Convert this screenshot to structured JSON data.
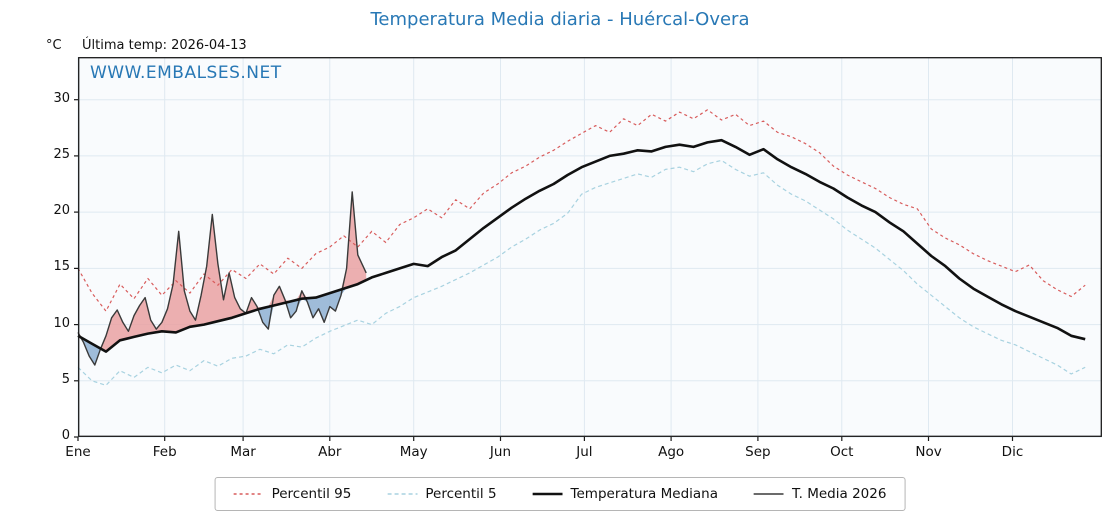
{
  "header": {
    "title": "Temperatura Media diaria - Huércal-Overa",
    "unit": "°C",
    "last_temp": "Última temp: 2026-04-13"
  },
  "watermark": "WWW.EMBALSES.NET",
  "colors": {
    "title": "#2878b5",
    "watermark": "#2878b5",
    "p95": "#d85c5c",
    "p5": "#a8d2e0",
    "median": "#111111",
    "t2026": "#3a3a3a",
    "fill_above": "#e89c9c",
    "fill_below": "#88add0",
    "grid": "#dfe9f1",
    "plot_bg": "#f9fbfd",
    "spine": "#1a1a1a"
  },
  "chart_data": {
    "type": "line",
    "title": "Temperatura Media diaria - Huércal-Overa",
    "xlabel": "",
    "ylabel": "°C",
    "x_unit": "day_of_year",
    "x_range": [
      0,
      366
    ],
    "ylim": [
      0,
      33.8
    ],
    "grid": true,
    "legend_position": "bottom-center",
    "y_ticks": [
      0,
      5,
      10,
      15,
      20,
      25,
      30
    ],
    "x_ticks": [
      {
        "day": 0,
        "label": "Ene"
      },
      {
        "day": 31,
        "label": "Feb"
      },
      {
        "day": 59,
        "label": "Mar"
      },
      {
        "day": 90,
        "label": "Abr"
      },
      {
        "day": 120,
        "label": "May"
      },
      {
        "day": 151,
        "label": "Jun"
      },
      {
        "day": 181,
        "label": "Jul"
      },
      {
        "day": 212,
        "label": "Ago"
      },
      {
        "day": 243,
        "label": "Sep"
      },
      {
        "day": 273,
        "label": "Oct"
      },
      {
        "day": 304,
        "label": "Nov"
      },
      {
        "day": 334,
        "label": "Dic"
      }
    ],
    "series": [
      {
        "name": "Percentil 95",
        "color_key": "p95",
        "width": 1.2,
        "dash": "3,3",
        "z": 1,
        "x": [
          0,
          5,
          10,
          15,
          20,
          25,
          30,
          35,
          40,
          45,
          50,
          55,
          60,
          65,
          70,
          75,
          80,
          85,
          90,
          95,
          100,
          105,
          110,
          115,
          120,
          125,
          130,
          135,
          140,
          145,
          150,
          155,
          160,
          165,
          170,
          175,
          180,
          185,
          190,
          195,
          200,
          205,
          210,
          215,
          220,
          225,
          230,
          235,
          240,
          245,
          250,
          255,
          260,
          265,
          270,
          275,
          280,
          285,
          290,
          295,
          300,
          305,
          310,
          315,
          320,
          325,
          330,
          335,
          340,
          345,
          350,
          355,
          360
        ],
        "values": [
          15.0,
          12.8,
          11.2,
          13.6,
          12.3,
          14.1,
          12.6,
          13.9,
          12.8,
          14.5,
          13.5,
          14.9,
          14.1,
          15.4,
          14.5,
          15.9,
          15.0,
          16.3,
          16.9,
          17.9,
          16.9,
          18.3,
          17.3,
          18.9,
          19.5,
          20.3,
          19.5,
          21.1,
          20.3,
          21.7,
          22.5,
          23.5,
          24.1,
          24.9,
          25.5,
          26.3,
          27.0,
          27.7,
          27.1,
          28.3,
          27.7,
          28.7,
          28.1,
          28.9,
          28.3,
          29.1,
          28.2,
          28.7,
          27.7,
          28.1,
          27.1,
          26.7,
          26.1,
          25.3,
          24.1,
          23.3,
          22.7,
          22.1,
          21.3,
          20.7,
          20.3,
          18.5,
          17.7,
          17.1,
          16.3,
          15.7,
          15.2,
          14.7,
          15.3,
          13.9,
          13.1,
          12.5,
          13.5
        ]
      },
      {
        "name": "Percentil 5",
        "color_key": "p5",
        "width": 1.2,
        "dash": "4,3",
        "z": 1,
        "x": [
          0,
          5,
          10,
          15,
          20,
          25,
          30,
          35,
          40,
          45,
          50,
          55,
          60,
          65,
          70,
          75,
          80,
          85,
          90,
          95,
          100,
          105,
          110,
          115,
          120,
          125,
          130,
          135,
          140,
          145,
          150,
          155,
          160,
          165,
          170,
          175,
          180,
          185,
          190,
          195,
          200,
          205,
          210,
          215,
          220,
          225,
          230,
          235,
          240,
          245,
          250,
          255,
          260,
          265,
          270,
          275,
          280,
          285,
          290,
          295,
          300,
          305,
          310,
          315,
          320,
          325,
          330,
          335,
          340,
          345,
          350,
          355,
          360
        ],
        "values": [
          6.2,
          5.0,
          4.6,
          5.9,
          5.3,
          6.2,
          5.7,
          6.4,
          5.9,
          6.8,
          6.3,
          7.0,
          7.2,
          7.8,
          7.4,
          8.2,
          8.0,
          8.8,
          9.4,
          9.9,
          10.4,
          10.0,
          11.0,
          11.6,
          12.4,
          12.9,
          13.4,
          14.0,
          14.6,
          15.3,
          16.0,
          16.9,
          17.6,
          18.4,
          19.0,
          19.9,
          21.6,
          22.2,
          22.6,
          23.0,
          23.4,
          23.1,
          23.8,
          24.0,
          23.6,
          24.3,
          24.6,
          23.8,
          23.2,
          23.5,
          22.4,
          21.6,
          21.0,
          20.2,
          19.4,
          18.4,
          17.6,
          16.8,
          15.8,
          14.8,
          13.6,
          12.6,
          11.6,
          10.6,
          9.8,
          9.2,
          8.6,
          8.2,
          7.6,
          7.0,
          6.4,
          5.6,
          6.2
        ]
      },
      {
        "name": "Temperatura Mediana",
        "color_key": "median",
        "width": 2.6,
        "dash": "",
        "z": 4,
        "x": [
          0,
          5,
          10,
          15,
          20,
          25,
          30,
          35,
          40,
          45,
          50,
          55,
          60,
          65,
          70,
          75,
          80,
          85,
          90,
          95,
          100,
          105,
          110,
          115,
          120,
          125,
          130,
          135,
          140,
          145,
          150,
          155,
          160,
          165,
          170,
          175,
          180,
          185,
          190,
          195,
          200,
          205,
          210,
          215,
          220,
          225,
          230,
          235,
          240,
          245,
          250,
          255,
          260,
          265,
          270,
          275,
          280,
          285,
          290,
          295,
          300,
          305,
          310,
          315,
          320,
          325,
          330,
          335,
          340,
          345,
          350,
          355,
          360
        ],
        "values": [
          9.0,
          8.3,
          7.6,
          8.6,
          8.9,
          9.2,
          9.4,
          9.3,
          9.8,
          10.0,
          10.3,
          10.6,
          11.0,
          11.4,
          11.7,
          12.0,
          12.3,
          12.4,
          12.8,
          13.2,
          13.6,
          14.2,
          14.6,
          15.0,
          15.4,
          15.2,
          16.0,
          16.6,
          17.6,
          18.6,
          19.5,
          20.4,
          21.2,
          21.9,
          22.5,
          23.3,
          24.0,
          24.5,
          25.0,
          25.2,
          25.5,
          25.4,
          25.8,
          26.0,
          25.8,
          26.2,
          26.4,
          25.8,
          25.1,
          25.6,
          24.7,
          24.0,
          23.4,
          22.7,
          22.1,
          21.3,
          20.6,
          20.0,
          19.1,
          18.3,
          17.2,
          16.1,
          15.2,
          14.1,
          13.2,
          12.5,
          11.8,
          11.2,
          10.7,
          10.2,
          9.7,
          9.0,
          8.7
        ]
      },
      {
        "name": "T. Media 2026",
        "color_key": "t2026",
        "width": 1.4,
        "dash": "",
        "z": 3,
        "x": [
          0,
          2,
          4,
          6,
          8,
          10,
          12,
          14,
          16,
          18,
          20,
          22,
          24,
          26,
          28,
          30,
          32,
          34,
          36,
          38,
          40,
          42,
          44,
          46,
          48,
          50,
          52,
          54,
          56,
          58,
          60,
          62,
          64,
          66,
          68,
          70,
          72,
          74,
          76,
          78,
          80,
          82,
          84,
          86,
          88,
          90,
          92,
          94,
          96,
          98,
          100,
          103
        ],
        "values": [
          9.3,
          8.4,
          7.2,
          6.4,
          7.8,
          9.0,
          10.6,
          11.3,
          10.2,
          9.4,
          10.8,
          11.7,
          12.4,
          10.4,
          9.6,
          10.2,
          11.4,
          13.6,
          18.3,
          13.0,
          11.2,
          10.4,
          12.6,
          15.2,
          19.8,
          15.4,
          12.2,
          14.6,
          12.4,
          11.4,
          11.0,
          12.4,
          11.6,
          10.2,
          9.6,
          12.6,
          13.4,
          12.2,
          10.6,
          11.2,
          13.0,
          12.0,
          10.6,
          11.4,
          10.2,
          11.6,
          11.2,
          12.6,
          15.0,
          21.8,
          16.2,
          14.6
        ]
      }
    ],
    "legend": [
      "Percentil 95",
      "Percentil 5",
      "Temperatura Mediana",
      "T. Media 2026"
    ],
    "fills": {
      "above_median_color_key": "fill_above",
      "below_median_color_key": "fill_below",
      "reference_series": "Temperatura Mediana",
      "comparison_series": "T. Media 2026"
    }
  }
}
